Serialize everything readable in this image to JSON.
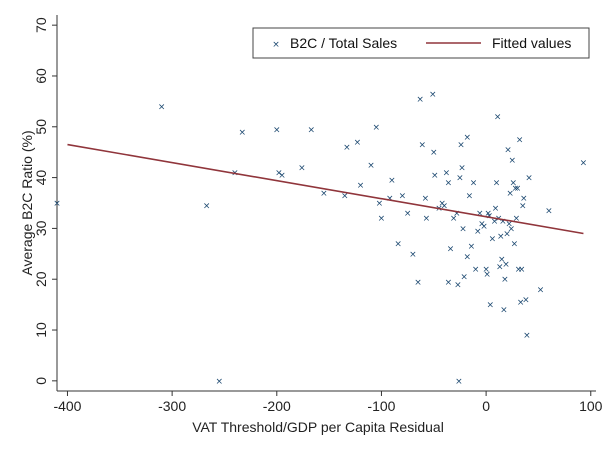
{
  "chart_data": {
    "type": "scatter",
    "xlabel": "VAT Threshold/GDP per Capita Residual",
    "ylabel": "Average B2C Ratio (%)",
    "xlim": [
      -410,
      105
    ],
    "ylim": [
      -2,
      72
    ],
    "xticks": [
      -400,
      -300,
      -200,
      -100,
      0,
      100
    ],
    "yticks": [
      0,
      10,
      20,
      30,
      40,
      50,
      60,
      70
    ],
    "grid": false,
    "legend_position": "top-right",
    "colors": {
      "scatter": "#1a476f",
      "fit": "#90353b"
    },
    "series": [
      {
        "name": "B2C / Total Sales",
        "kind": "scatter",
        "marker": "×",
        "points": [
          [
            -410,
            35
          ],
          [
            -310,
            54
          ],
          [
            -267,
            34.5
          ],
          [
            -255,
            0
          ],
          [
            -240,
            41
          ],
          [
            -233,
            49
          ],
          [
            -200,
            49.5
          ],
          [
            -198,
            41
          ],
          [
            -195,
            40.5
          ],
          [
            -176,
            42
          ],
          [
            -167,
            49.5
          ],
          [
            -155,
            37
          ],
          [
            -135,
            36.5
          ],
          [
            -133,
            46
          ],
          [
            -123,
            47
          ],
          [
            -120,
            38.5
          ],
          [
            -110,
            42.5
          ],
          [
            -105,
            50
          ],
          [
            -102,
            35
          ],
          [
            -100,
            32
          ],
          [
            -92,
            36
          ],
          [
            -90,
            39.5
          ],
          [
            -84,
            27
          ],
          [
            -80,
            36.5
          ],
          [
            -75,
            33
          ],
          [
            -70,
            25
          ],
          [
            -65,
            19.5
          ],
          [
            -63,
            55.5
          ],
          [
            -61,
            46.5
          ],
          [
            -58,
            36
          ],
          [
            -57,
            32
          ],
          [
            -51,
            56.5
          ],
          [
            -50,
            45
          ],
          [
            -49,
            40.5
          ],
          [
            -45,
            34
          ],
          [
            -42,
            35
          ],
          [
            -40,
            34.5
          ],
          [
            -38,
            41
          ],
          [
            -36,
            19.5
          ],
          [
            -36,
            39
          ],
          [
            -34,
            26
          ],
          [
            -31,
            32
          ],
          [
            -28,
            33
          ],
          [
            -27,
            19
          ],
          [
            -26,
            0
          ],
          [
            -25,
            40
          ],
          [
            -24,
            46.5
          ],
          [
            -23,
            42
          ],
          [
            -22,
            30
          ],
          [
            -21,
            20.5
          ],
          [
            -18,
            48
          ],
          [
            -18,
            24.5
          ],
          [
            -16,
            36.5
          ],
          [
            -14,
            26.5
          ],
          [
            -12,
            39
          ],
          [
            -10,
            22
          ],
          [
            -8,
            29.5
          ],
          [
            -6,
            33
          ],
          [
            -4,
            31
          ],
          [
            -2,
            30.5
          ],
          [
            0,
            22
          ],
          [
            1,
            21
          ],
          [
            2,
            33
          ],
          [
            3,
            32.5
          ],
          [
            4,
            15
          ],
          [
            6,
            28
          ],
          [
            8,
            31.5
          ],
          [
            9,
            34
          ],
          [
            10,
            39
          ],
          [
            11,
            52
          ],
          [
            12,
            32
          ],
          [
            13,
            22.5
          ],
          [
            14,
            28.5
          ],
          [
            15,
            24
          ],
          [
            16,
            31.5
          ],
          [
            17,
            14
          ],
          [
            18,
            20
          ],
          [
            19,
            23
          ],
          [
            20,
            29
          ],
          [
            21,
            45.5
          ],
          [
            22,
            31
          ],
          [
            23,
            37
          ],
          [
            24,
            30
          ],
          [
            25,
            43.5
          ],
          [
            26,
            39
          ],
          [
            27,
            27
          ],
          [
            28,
            38
          ],
          [
            29,
            32
          ],
          [
            30,
            38
          ],
          [
            31,
            22
          ],
          [
            32,
            47.5
          ],
          [
            33,
            15.5
          ],
          [
            34,
            22
          ],
          [
            35,
            34.5
          ],
          [
            36,
            36
          ],
          [
            38,
            16
          ],
          [
            39,
            9
          ],
          [
            41,
            40
          ],
          [
            52,
            18
          ],
          [
            60,
            33.5
          ],
          [
            93,
            43
          ]
        ]
      },
      {
        "name": "Fitted values",
        "kind": "line",
        "points": [
          [
            -400,
            46.5
          ],
          [
            93,
            29
          ]
        ]
      }
    ]
  }
}
